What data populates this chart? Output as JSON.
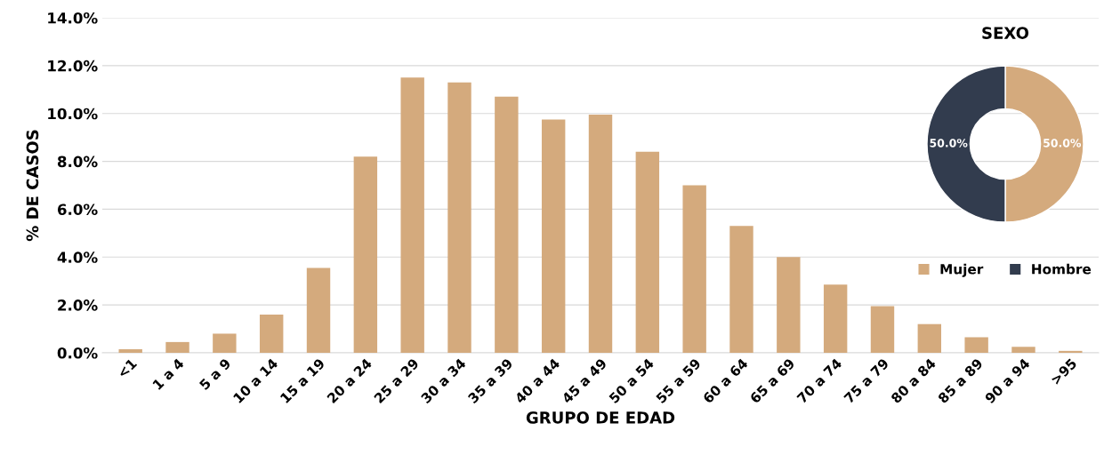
{
  "chart_data": [
    {
      "type": "bar",
      "xlabel": "GRUPO DE EDAD",
      "ylabel": "% DE CASOS",
      "categories": [
        "<1",
        "1 a 4",
        "5 a 9",
        "10 a 14",
        "15 a 19",
        "20 a 24",
        "25 a 29",
        "30 a 34",
        "35 a 39",
        "40 a 44",
        "45 a 49",
        "50 a 54",
        "55 a 59",
        "60 a 64",
        "65 a 69",
        "70 a 74",
        "75 a 79",
        "80 a 84",
        "85 a 89",
        "90 a 94",
        ">95"
      ],
      "values": [
        0.15,
        0.45,
        0.8,
        1.6,
        3.55,
        8.2,
        11.5,
        11.3,
        10.7,
        9.75,
        9.95,
        8.4,
        7.0,
        5.3,
        4.0,
        2.85,
        1.95,
        1.2,
        0.65,
        0.25,
        0.08
      ],
      "color": "#d4aa7d",
      "ylim": [
        0,
        14
      ],
      "yticks": [
        {
          "value": 0,
          "label": "0.0%"
        },
        {
          "value": 2,
          "label": "2.0%"
        },
        {
          "value": 4,
          "label": "4.0%"
        },
        {
          "value": 6,
          "label": "6.0%"
        },
        {
          "value": 8,
          "label": "8.0%"
        },
        {
          "value": 10,
          "label": "10.0%"
        },
        {
          "value": 12,
          "label": "12.0%"
        },
        {
          "value": 14,
          "label": "14.0%"
        }
      ],
      "grid": "y",
      "legend": false
    },
    {
      "type": "donut",
      "title": "SEXO",
      "categories": [
        "Mujer",
        "Hombre"
      ],
      "values": [
        50,
        50
      ],
      "colors": [
        "#d4aa7d",
        "#323c4e"
      ],
      "value_labels": [
        "50.0%",
        "50.0%"
      ],
      "legend": "bottom"
    }
  ]
}
